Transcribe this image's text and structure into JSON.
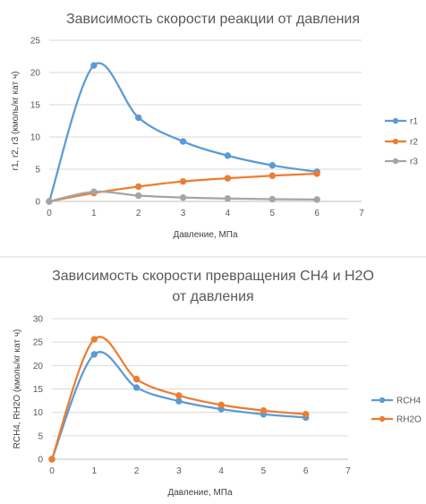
{
  "chart_data": [
    {
      "type": "line",
      "title": "Зависимость скорости реакции от давления",
      "title_lines": [
        "Зависимость скорости реакции от давления"
      ],
      "xlabel": "Давление, МПа",
      "ylabel": "r1, r2, r3 (кмоль/кг кат ч)",
      "xlim": [
        0,
        7
      ],
      "ylim": [
        0,
        25
      ],
      "x_ticks": [
        0,
        1,
        2,
        3,
        4,
        5,
        6,
        7
      ],
      "y_ticks": [
        0,
        5,
        10,
        15,
        20,
        25
      ],
      "grid": "horizontal",
      "legend": "right",
      "series": [
        {
          "name": "r1",
          "color": "#5b9bd5",
          "x": [
            0,
            1,
            2,
            3,
            4,
            5,
            6
          ],
          "values": [
            0,
            21.1,
            13.0,
            9.3,
            7.1,
            5.6,
            4.6
          ]
        },
        {
          "name": "r2",
          "color": "#ed7d31",
          "x": [
            0,
            1,
            2,
            3,
            4,
            5,
            6
          ],
          "values": [
            0,
            1.3,
            2.3,
            3.1,
            3.6,
            4.0,
            4.3
          ]
        },
        {
          "name": "r3",
          "color": "#a5a5a5",
          "x": [
            0,
            1,
            2,
            3,
            4,
            5,
            6
          ],
          "values": [
            0,
            1.5,
            0.9,
            0.6,
            0.45,
            0.35,
            0.3
          ]
        }
      ]
    },
    {
      "type": "line",
      "title": "Зависимость скорости превращения CH4 и H2O от давления",
      "title_lines": [
        "Зависимость скорости превращения CH4 и H2O",
        "от давления"
      ],
      "xlabel": "Давление, МПа",
      "ylabel": "RCH4, RH2O (кмоль/кг кат ч)",
      "xlim": [
        0,
        7
      ],
      "ylim": [
        0,
        30
      ],
      "x_ticks": [
        0,
        1,
        2,
        3,
        4,
        5,
        6,
        7
      ],
      "y_ticks": [
        0,
        5,
        10,
        15,
        20,
        25,
        30
      ],
      "grid": "horizontal",
      "legend": "right",
      "series": [
        {
          "name": "RCH4",
          "color": "#5b9bd5",
          "x": [
            0,
            1,
            2,
            3,
            4,
            5,
            6
          ],
          "values": [
            0,
            22.4,
            15.3,
            12.4,
            10.7,
            9.6,
            8.9
          ]
        },
        {
          "name": "RH2O",
          "color": "#ed7d31",
          "x": [
            0,
            1,
            2,
            3,
            4,
            5,
            6
          ],
          "values": [
            0,
            25.6,
            17.1,
            13.6,
            11.6,
            10.4,
            9.6
          ]
        }
      ]
    }
  ]
}
